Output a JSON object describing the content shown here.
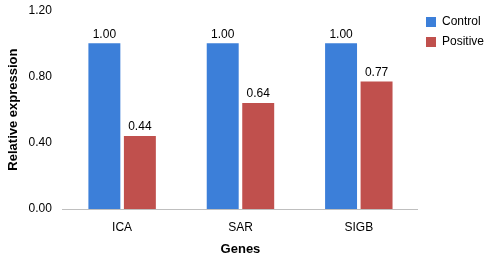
{
  "chart_data": {
    "type": "bar",
    "x_label": "Genes",
    "y_label": "Relative expression",
    "categories": [
      "ICA",
      "SAR",
      "SIGB"
    ],
    "series": [
      {
        "name": "Control",
        "color": "#3c7fd9",
        "values": [
          1.0,
          1.0,
          1.0
        ],
        "value_labels": [
          "1.00",
          "1.00",
          "1.00"
        ]
      },
      {
        "name": "Positive",
        "color": "#c0504d",
        "values": [
          0.44,
          0.64,
          0.77
        ],
        "value_labels": [
          "0.44",
          "0.64",
          "0.77"
        ]
      }
    ],
    "ylim": [
      0,
      1.2
    ],
    "yticks": [
      {
        "value": 0,
        "label": "0.00"
      },
      {
        "value": 0.4,
        "label": "0.40"
      },
      {
        "value": 0.8,
        "label": "0.80"
      },
      {
        "value": 1.2,
        "label": "1.20"
      }
    ],
    "grid": false,
    "legend": "top-right",
    "data_labels": true
  }
}
